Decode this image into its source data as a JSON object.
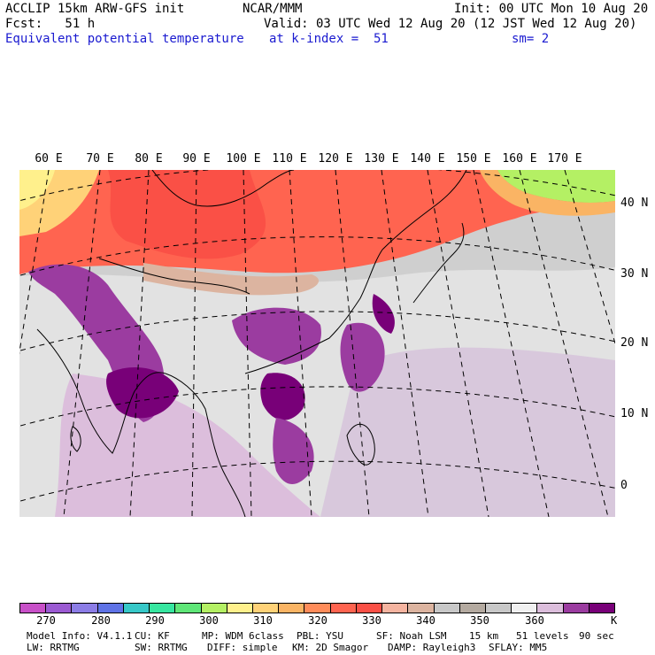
{
  "header": {
    "model": "ACCLIP 15km ARW-GFS init",
    "org": "NCAR/MMM",
    "init": "Init: 00 UTC Mon 10 Aug 20",
    "fcst": "Fcst:   51 h",
    "valid": "Valid: 03 UTC Wed 12 Aug 20 (12 JST Wed 12 Aug 20)",
    "field": "Equivalent potential temperature",
    "level": "at k-index =  51",
    "smooth": "sm= 2"
  },
  "map": {
    "lon_labels": [
      "60 E",
      "70 E",
      "80 E",
      "90 E",
      "100 E",
      "110 E",
      "120 E",
      "130 E",
      "140 E",
      "150 E",
      "160 E",
      "170 E"
    ],
    "lat_labels": [
      "40 N",
      "30 N",
      "20 N",
      "10 N",
      "0"
    ],
    "land_color": "#f0f0f0"
  },
  "colorbar": {
    "colors": [
      "#c850c8",
      "#9b5ad2",
      "#8c7de6",
      "#5f73e6",
      "#37c8c8",
      "#37e6a0",
      "#5fe678",
      "#b4f064",
      "#fff08c",
      "#ffd278",
      "#fab464",
      "#ff8c5a",
      "#ff6450",
      "#fa5046",
      "#f5b4a0",
      "#dcb4a0",
      "#c8c8c8",
      "#b4aaa0",
      "#c8c8c8",
      "#f0f0f0",
      "#dcbedc",
      "#9b3ca0",
      "#780078"
    ],
    "ticks": [
      "270",
      "280",
      "290",
      "300",
      "310",
      "320",
      "330",
      "340",
      "350",
      "360"
    ],
    "unit": "K"
  },
  "footer": {
    "line1": [
      "Model Info: V4.1.1",
      "CU: KF",
      "MP: WDM 6class",
      "PBL: YSU",
      "SF: Noah LSM",
      "15 km",
      "51 levels",
      "90 sec"
    ],
    "line2": [
      "LW: RRTMG",
      "SW: RRTMG",
      "DIFF: simple",
      "KM: 2D Smagor",
      "DAMP: Rayleigh3",
      "SFLAY: MM5"
    ]
  }
}
